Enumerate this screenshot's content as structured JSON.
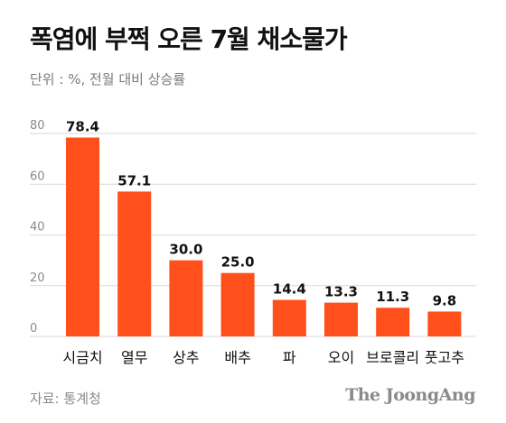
{
  "title": "폭염에 부쩍 오른 7월 채소물가",
  "subtitle": "단위 : %, 전월 대비 상승률",
  "source": "자료: 통계청",
  "brand": "The JoongAng",
  "colors": {
    "bar": "#FF4F1A",
    "grid": "#D9D9D9",
    "tick": "#8A8A8A",
    "label": "#111111"
  },
  "chart_data": {
    "type": "bar",
    "categories": [
      "시금치",
      "열무",
      "상추",
      "배추",
      "파",
      "오이",
      "브로콜리",
      "풋고추"
    ],
    "values": [
      78.4,
      57.1,
      30.0,
      25.0,
      14.4,
      13.3,
      11.3,
      9.8
    ],
    "value_labels": [
      "78.4",
      "57.1",
      "30.0",
      "25.0",
      "14.4",
      "13.3",
      "11.3",
      "9.8"
    ],
    "yticks": [
      "0",
      "20",
      "40",
      "60",
      "80"
    ],
    "ylim": [
      0,
      80
    ],
    "grid": true
  }
}
